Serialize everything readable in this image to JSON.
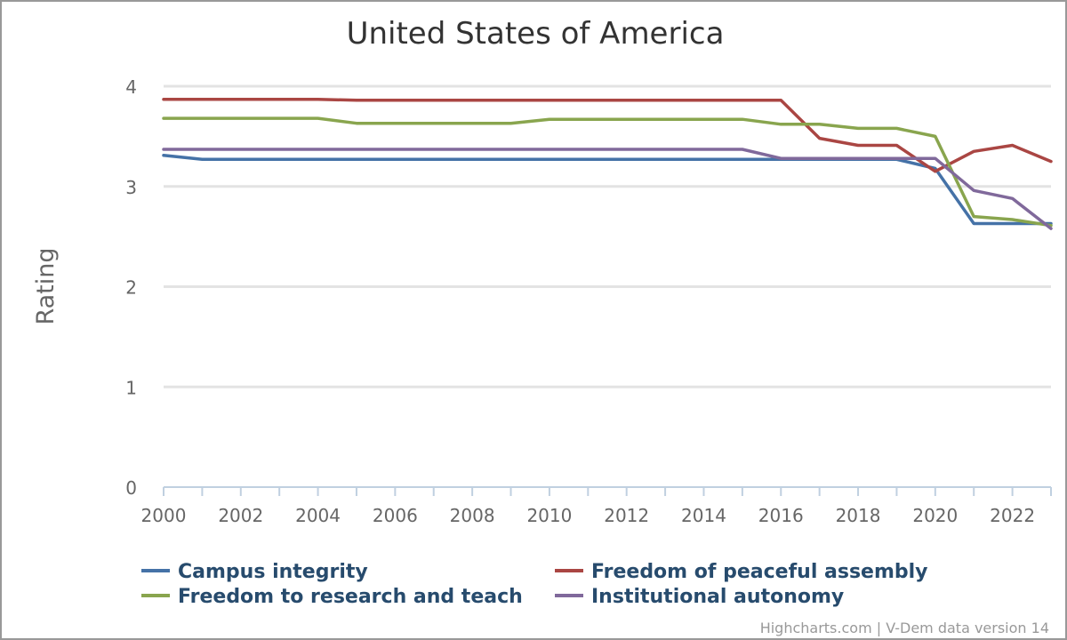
{
  "chart_data": {
    "type": "line",
    "title": "United States of America",
    "ylabel": "Rating",
    "xlabel": "",
    "ylim": [
      0,
      4
    ],
    "yticks": [
      0,
      1,
      2,
      3,
      4
    ],
    "xlim": [
      2000,
      2023
    ],
    "xticks": [
      2000,
      2002,
      2004,
      2006,
      2008,
      2010,
      2012,
      2014,
      2016,
      2018,
      2020,
      2022
    ],
    "grid": true,
    "legend_position": "bottom",
    "x": [
      2000,
      2001,
      2002,
      2003,
      2004,
      2005,
      2006,
      2007,
      2008,
      2009,
      2010,
      2011,
      2012,
      2013,
      2014,
      2015,
      2016,
      2017,
      2018,
      2019,
      2020,
      2021,
      2022,
      2023
    ],
    "series": [
      {
        "name": "Campus integrity",
        "color": "#4572a7",
        "values": [
          3.31,
          3.27,
          3.27,
          3.27,
          3.27,
          3.27,
          3.27,
          3.27,
          3.27,
          3.27,
          3.27,
          3.27,
          3.27,
          3.27,
          3.27,
          3.27,
          3.27,
          3.27,
          3.27,
          3.27,
          3.18,
          2.63,
          2.63,
          2.63
        ]
      },
      {
        "name": "Freedom of peaceful assembly",
        "color": "#aa4643",
        "values": [
          3.87,
          3.87,
          3.87,
          3.87,
          3.87,
          3.86,
          3.86,
          3.86,
          3.86,
          3.86,
          3.86,
          3.86,
          3.86,
          3.86,
          3.86,
          3.86,
          3.86,
          3.48,
          3.41,
          3.41,
          3.15,
          3.35,
          3.41,
          3.25
        ]
      },
      {
        "name": "Freedom to research and teach",
        "color": "#89a54e",
        "values": [
          3.68,
          3.68,
          3.68,
          3.68,
          3.68,
          3.63,
          3.63,
          3.63,
          3.63,
          3.63,
          3.67,
          3.67,
          3.67,
          3.67,
          3.67,
          3.67,
          3.62,
          3.62,
          3.58,
          3.58,
          3.5,
          2.7,
          2.67,
          2.61
        ]
      },
      {
        "name": "Institutional autonomy",
        "color": "#80699b",
        "values": [
          3.37,
          3.37,
          3.37,
          3.37,
          3.37,
          3.37,
          3.37,
          3.37,
          3.37,
          3.37,
          3.37,
          3.37,
          3.37,
          3.37,
          3.37,
          3.37,
          3.28,
          3.28,
          3.28,
          3.28,
          3.28,
          2.96,
          2.88,
          2.58
        ]
      }
    ],
    "credits": "Highcharts.com | V-Dem data version 14"
  }
}
